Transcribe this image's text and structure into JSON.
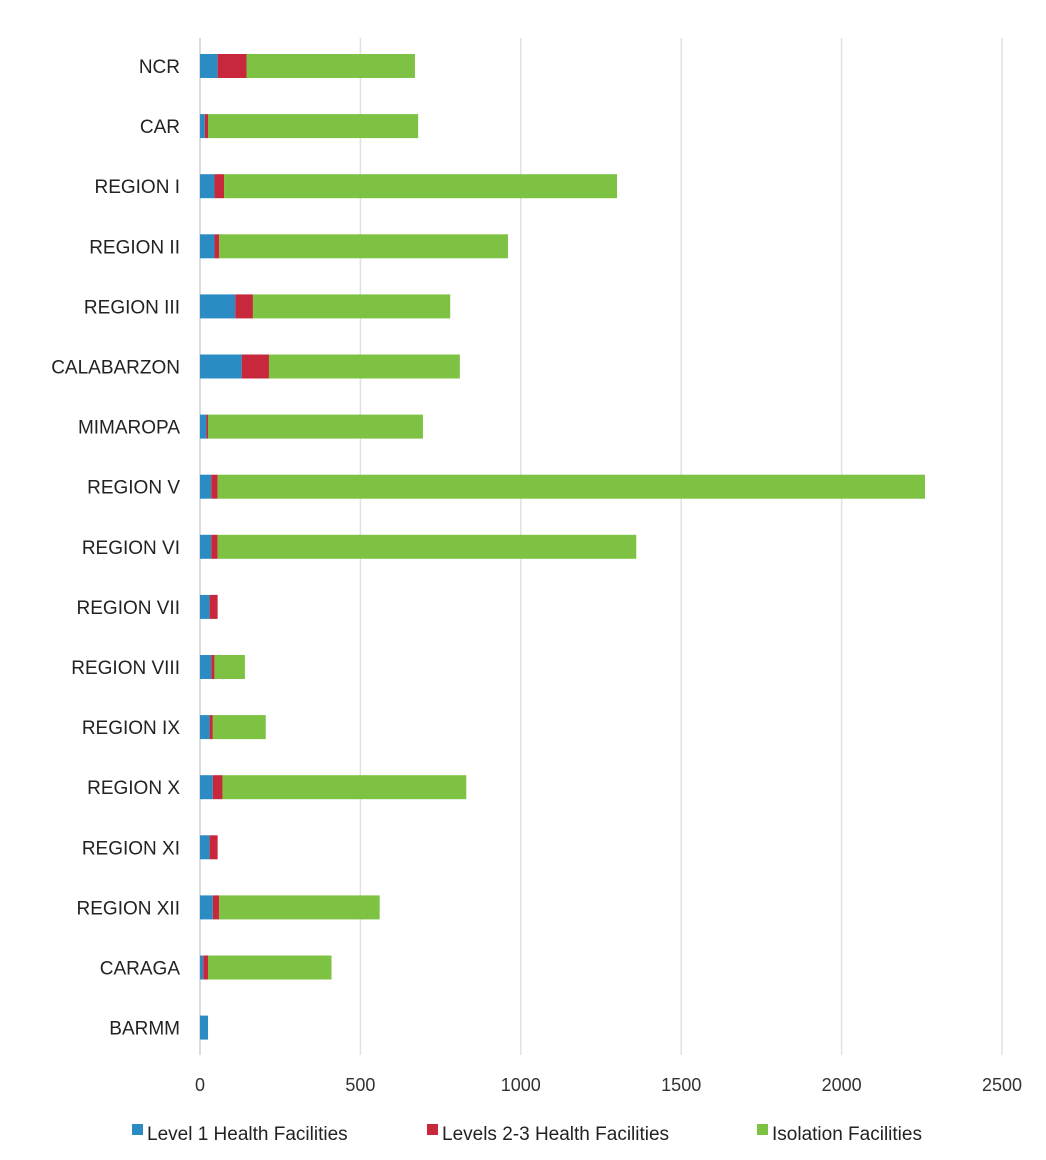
{
  "chart_data": {
    "type": "bar",
    "orientation": "horizontal",
    "stacked": true,
    "categories": [
      "NCR",
      "CAR",
      "REGION I",
      "REGION II",
      "REGION III",
      "CALABARZON",
      "MIMAROPA",
      "REGION V",
      "REGION VI",
      "REGION VII",
      "REGION VIII",
      "REGION IX",
      "REGION X",
      "REGION XI",
      "REGION XII",
      "CARAGA",
      "BARMM"
    ],
    "series": [
      {
        "name": "Level 1 Health Facilities",
        "color": "#2b8cc4",
        "values": [
          55,
          15,
          45,
          45,
          110,
          130,
          20,
          35,
          35,
          30,
          35,
          30,
          40,
          30,
          40,
          10,
          25
        ]
      },
      {
        "name": "Levels 2-3 Health Facilities",
        "color": "#c8283c",
        "values": [
          90,
          10,
          30,
          15,
          55,
          85,
          5,
          20,
          20,
          25,
          10,
          10,
          30,
          25,
          20,
          15,
          0
        ]
      },
      {
        "name": "Isolation Facilities",
        "color": "#7dc242",
        "values": [
          525,
          655,
          1225,
          900,
          615,
          595,
          670,
          2205,
          1305,
          0,
          95,
          165,
          760,
          0,
          500,
          385,
          0
        ]
      }
    ],
    "xlim": [
      0,
      2500
    ],
    "xticks": [
      "0",
      "500",
      "1000",
      "1500",
      "2000",
      "2500"
    ],
    "xtick_values": [
      0,
      500,
      1000,
      1500,
      2000,
      2500
    ],
    "grid": true,
    "legend_position": "bottom",
    "title": "",
    "xlabel": "",
    "ylabel": ""
  }
}
